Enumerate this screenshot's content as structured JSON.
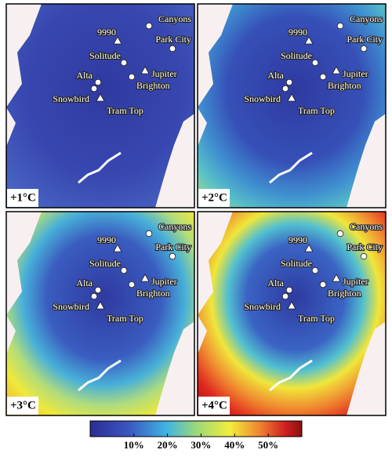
{
  "panels": [
    {
      "label": "+1°C"
    },
    {
      "label": "+2°C"
    },
    {
      "label": "+3°C"
    },
    {
      "label": "+4°C"
    }
  ],
  "sites": [
    {
      "name": "Canyons",
      "marker": "circle"
    },
    {
      "name": "9990",
      "marker": "triangle"
    },
    {
      "name": "Park City",
      "marker": "circle"
    },
    {
      "name": "Solitude",
      "marker": "circle"
    },
    {
      "name": "Jupiter",
      "marker": "triangle"
    },
    {
      "name": "Brighton",
      "marker": "circle"
    },
    {
      "name": "Alta",
      "marker": "circle"
    },
    {
      "name": "Snowbird",
      "marker": "circle"
    },
    {
      "name": "Tram Top",
      "marker": "triangle"
    }
  ],
  "colorbar": {
    "clim": [
      -3,
      60
    ],
    "ticks": [
      {
        "value": 10,
        "label": "10%"
      },
      {
        "value": 20,
        "label": "20%"
      },
      {
        "value": 30,
        "label": "30%"
      },
      {
        "value": 40,
        "label": "40%"
      },
      {
        "value": 50,
        "label": "50%"
      }
    ]
  }
}
